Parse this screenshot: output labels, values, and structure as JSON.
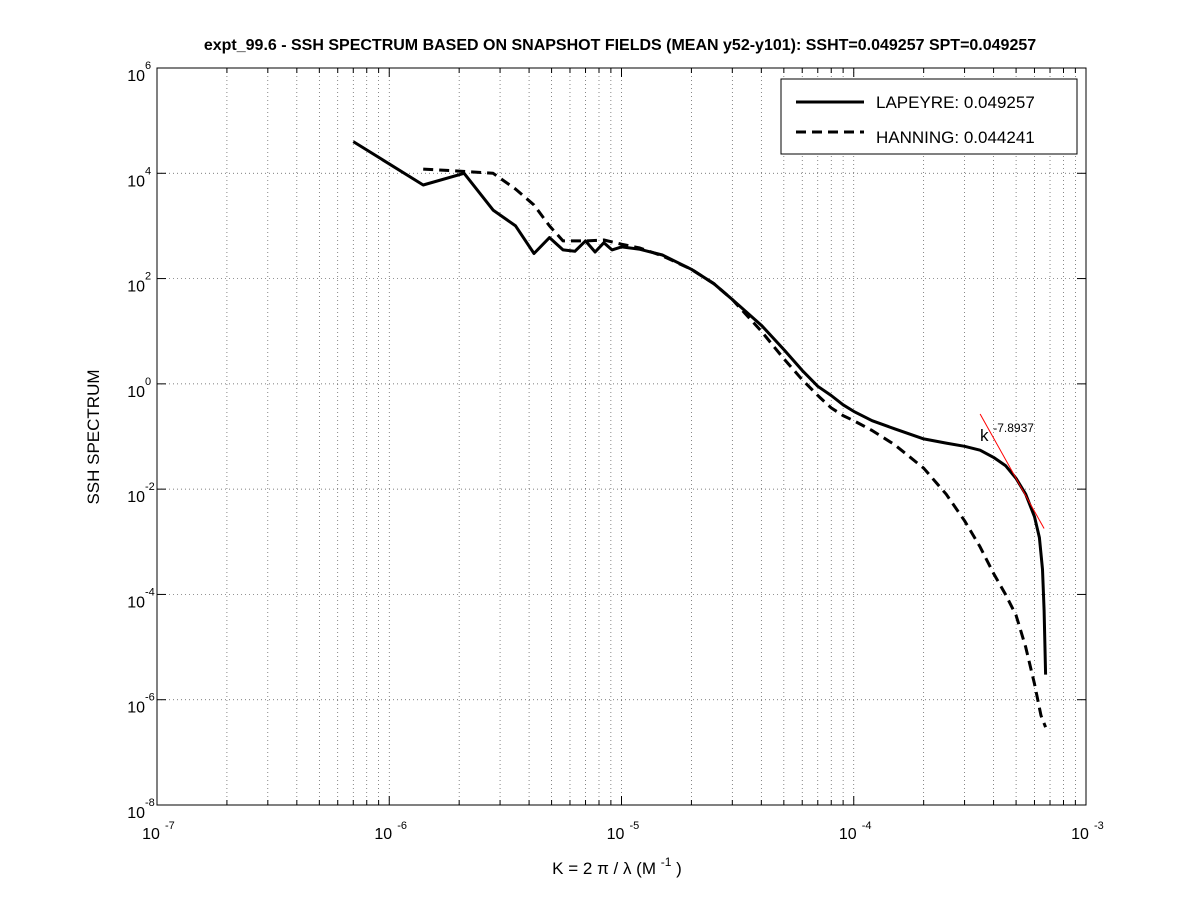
{
  "chart_data": {
    "type": "line",
    "title": "expt_99.6 - SSH SPECTRUM BASED ON SNAPSHOT FIELDS (MEAN y52-y101): SSHT=0.049257 SPT=0.049257",
    "xlabel_prefix": "K = 2 π / λ  (M",
    "xlabel_exp": "-1",
    "xlabel_suffix": ")",
    "ylabel": "SSH SPECTRUM",
    "xscale": "log",
    "yscale": "log",
    "xlim": [
      1e-07,
      0.001
    ],
    "ylim": [
      1e-08,
      1000000.0
    ],
    "grid": true,
    "x_ticks": [
      {
        "value": 1e-07,
        "base": "10",
        "exp": "-7"
      },
      {
        "value": 1e-06,
        "base": "10",
        "exp": "-6"
      },
      {
        "value": 1e-05,
        "base": "10",
        "exp": "-5"
      },
      {
        "value": 0.0001,
        "base": "10",
        "exp": "-4"
      },
      {
        "value": 0.001,
        "base": "10",
        "exp": "-3"
      }
    ],
    "y_ticks": [
      {
        "value": 1e-08,
        "base": "10",
        "exp": "-8"
      },
      {
        "value": 1e-06,
        "base": "10",
        "exp": "-6"
      },
      {
        "value": 0.0001,
        "base": "10",
        "exp": "-4"
      },
      {
        "value": 0.01,
        "base": "10",
        "exp": "-2"
      },
      {
        "value": 1.0,
        "base": "10",
        "exp": "0"
      },
      {
        "value": 100.0,
        "base": "10",
        "exp": "2"
      },
      {
        "value": 10000.0,
        "base": "10",
        "exp": "4"
      },
      {
        "value": 1000000.0,
        "base": "10",
        "exp": "6"
      }
    ],
    "legend": {
      "position": "top-right",
      "entries": [
        {
          "label": "LAPEYRE: 0.049257",
          "style": "solid"
        },
        {
          "label": "HANNING: 0.044241",
          "style": "dashed"
        }
      ]
    },
    "series": [
      {
        "name": "LAPEYRE",
        "style": "solid",
        "color": "#000000",
        "points": [
          [
            7e-07,
            40000
          ],
          [
            1.4e-06,
            6000
          ],
          [
            2.1e-06,
            10000
          ],
          [
            2.8e-06,
            2000
          ],
          [
            3.5e-06,
            1000
          ],
          [
            4.2e-06,
            300
          ],
          [
            4.9e-06,
            600
          ],
          [
            5.6e-06,
            350
          ],
          [
            6.3e-06,
            330
          ],
          [
            7e-06,
            520
          ],
          [
            7.7e-06,
            320
          ],
          [
            8.4e-06,
            480
          ],
          [
            9.1e-06,
            350
          ],
          [
            1e-05,
            400
          ],
          [
            1.2e-05,
            360
          ],
          [
            1.5e-05,
            280
          ],
          [
            2e-05,
            150
          ],
          [
            2.5e-05,
            80
          ],
          [
            3e-05,
            40
          ],
          [
            4e-05,
            13
          ],
          [
            5e-05,
            4.5
          ],
          [
            6e-05,
            1.8
          ],
          [
            7e-05,
            0.9
          ],
          [
            8e-05,
            0.6
          ],
          [
            9e-05,
            0.4
          ],
          [
            0.0001,
            0.3
          ],
          [
            0.00012,
            0.2
          ],
          [
            0.00015,
            0.14
          ],
          [
            0.0002,
            0.09
          ],
          [
            0.00025,
            0.075
          ],
          [
            0.0003,
            0.065
          ],
          [
            0.00035,
            0.055
          ],
          [
            0.0004,
            0.04
          ],
          [
            0.00045,
            0.028
          ],
          [
            0.0005,
            0.016
          ],
          [
            0.00055,
            0.008
          ],
          [
            0.0006,
            0.003
          ],
          [
            0.00063,
            0.0012
          ],
          [
            0.00065,
            0.0003
          ],
          [
            0.00066,
            5e-05
          ],
          [
            0.00067,
            3e-06
          ]
        ]
      },
      {
        "name": "HANNING",
        "style": "dashed",
        "color": "#000000",
        "points": [
          [
            1.4e-06,
            12000
          ],
          [
            2e-06,
            11000
          ],
          [
            2.8e-06,
            10000
          ],
          [
            3.5e-06,
            5000
          ],
          [
            4.2e-06,
            2500
          ],
          [
            4.9e-06,
            1000
          ],
          [
            5.6e-06,
            520
          ],
          [
            7e-06,
            520
          ],
          [
            8.4e-06,
            540
          ],
          [
            1e-05,
            450
          ],
          [
            1.2e-05,
            380
          ],
          [
            1.5e-05,
            270
          ],
          [
            2e-05,
            150
          ],
          [
            2.5e-05,
            80
          ],
          [
            3e-05,
            40
          ],
          [
            4e-05,
            10
          ],
          [
            5e-05,
            3
          ],
          [
            6e-05,
            1.2
          ],
          [
            7e-05,
            0.6
          ],
          [
            8e-05,
            0.35
          ],
          [
            9e-05,
            0.25
          ],
          [
            0.0001,
            0.2
          ],
          [
            0.00012,
            0.13
          ],
          [
            0.00015,
            0.07
          ],
          [
            0.0002,
            0.025
          ],
          [
            0.00025,
            0.008
          ],
          [
            0.0003,
            0.0025
          ],
          [
            0.00035,
            0.0008
          ],
          [
            0.0004,
            0.00025
          ],
          [
            0.00045,
            0.0001
          ],
          [
            0.0005,
            4e-05
          ],
          [
            0.00055,
            1e-05
          ],
          [
            0.0006,
            2e-06
          ],
          [
            0.00064,
            5e-07
          ],
          [
            0.00067,
            3e-07
          ]
        ]
      }
    ],
    "fit_line": {
      "label_base": "k",
      "label_exp": "-7.8937",
      "color": "#ff0000",
      "slope": -7.8937,
      "x_range": [
        0.00035,
        0.00066
      ],
      "anchor": [
        0.0005,
        0.016
      ]
    }
  }
}
